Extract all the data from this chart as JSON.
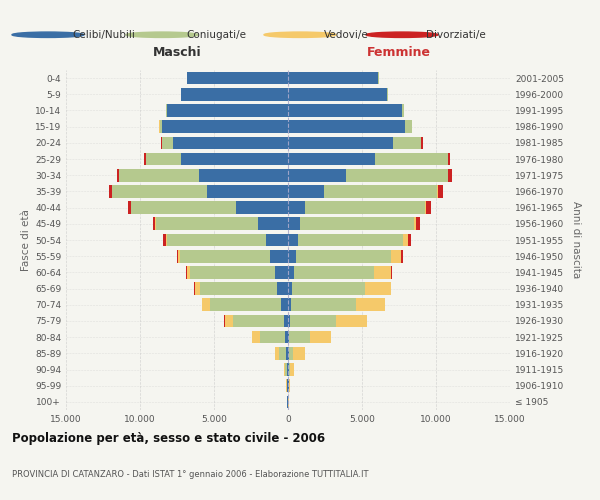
{
  "title": "Popolazione per età, sesso e stato civile - 2006",
  "subtitle": "PROVINCIA DI CATANZARO - Dati ISTAT 1° gennaio 2006 - Elaborazione TUTTITALIA.IT",
  "left_header": "Maschi",
  "right_header": "Femmine",
  "ylabel_left": "Fasce di età",
  "ylabel_right": "Anni di nascita",
  "age_groups": [
    "100+",
    "95-99",
    "90-94",
    "85-89",
    "80-84",
    "75-79",
    "70-74",
    "65-69",
    "60-64",
    "55-59",
    "50-54",
    "45-49",
    "40-44",
    "35-39",
    "30-34",
    "25-29",
    "20-24",
    "15-19",
    "10-14",
    "5-9",
    "0-4"
  ],
  "birth_years": [
    "≤ 1905",
    "1906-1910",
    "1911-1915",
    "1916-1920",
    "1921-1925",
    "1926-1930",
    "1931-1935",
    "1936-1940",
    "1941-1945",
    "1946-1950",
    "1951-1955",
    "1956-1960",
    "1961-1965",
    "1966-1970",
    "1971-1975",
    "1976-1980",
    "1981-1985",
    "1986-1990",
    "1991-1995",
    "1996-2000",
    "2001-2005"
  ],
  "colors": {
    "celibe": "#3a6ea5",
    "coniugato": "#b5c98e",
    "vedovo": "#f5c96a",
    "divorziato": "#cc2222"
  },
  "legend_labels": [
    "Celibi/Nubili",
    "Coniugati/e",
    "Vedovi/e",
    "Divorziati/e"
  ],
  "xtick_labels": [
    "15.000",
    "10.000",
    "5.000",
    "0",
    "5.000",
    "10.000",
    "15.000"
  ],
  "maschi": {
    "celibe": [
      55,
      80,
      100,
      150,
      220,
      300,
      500,
      750,
      900,
      1200,
      1500,
      2000,
      3500,
      5500,
      6000,
      7200,
      7800,
      8500,
      8200,
      7200,
      6800
    ],
    "coniugato": [
      5,
      15,
      70,
      450,
      1700,
      3400,
      4800,
      5200,
      5700,
      6100,
      6700,
      6900,
      7100,
      6400,
      5400,
      2400,
      700,
      180,
      40,
      15,
      8
    ],
    "vedovo": [
      5,
      20,
      80,
      280,
      480,
      580,
      500,
      340,
      240,
      100,
      75,
      55,
      35,
      25,
      18,
      25,
      15,
      8,
      4,
      4,
      2
    ],
    "divorziato": [
      1,
      2,
      4,
      8,
      12,
      18,
      28,
      45,
      75,
      110,
      145,
      170,
      190,
      170,
      140,
      75,
      35,
      8,
      4,
      2,
      1
    ]
  },
  "femmine": {
    "nubile": [
      25,
      45,
      55,
      70,
      90,
      140,
      190,
      280,
      380,
      560,
      650,
      780,
      1150,
      2400,
      3900,
      5900,
      7100,
      7900,
      7700,
      6700,
      6100
    ],
    "coniugata": [
      3,
      12,
      50,
      300,
      1400,
      3100,
      4400,
      4900,
      5400,
      6400,
      7100,
      7700,
      8100,
      7700,
      6900,
      4900,
      1900,
      480,
      140,
      45,
      18
    ],
    "vedova": [
      18,
      70,
      270,
      750,
      1400,
      2100,
      1950,
      1750,
      1150,
      680,
      380,
      190,
      95,
      55,
      36,
      28,
      18,
      9,
      4,
      4,
      2
    ],
    "divorziata": [
      1,
      2,
      4,
      8,
      12,
      18,
      28,
      45,
      75,
      140,
      190,
      240,
      340,
      340,
      240,
      140,
      75,
      18,
      4,
      2,
      1
    ]
  },
  "bg_color": "#f5f5f0",
  "grid_color": "#cccccc",
  "bar_height": 0.78
}
